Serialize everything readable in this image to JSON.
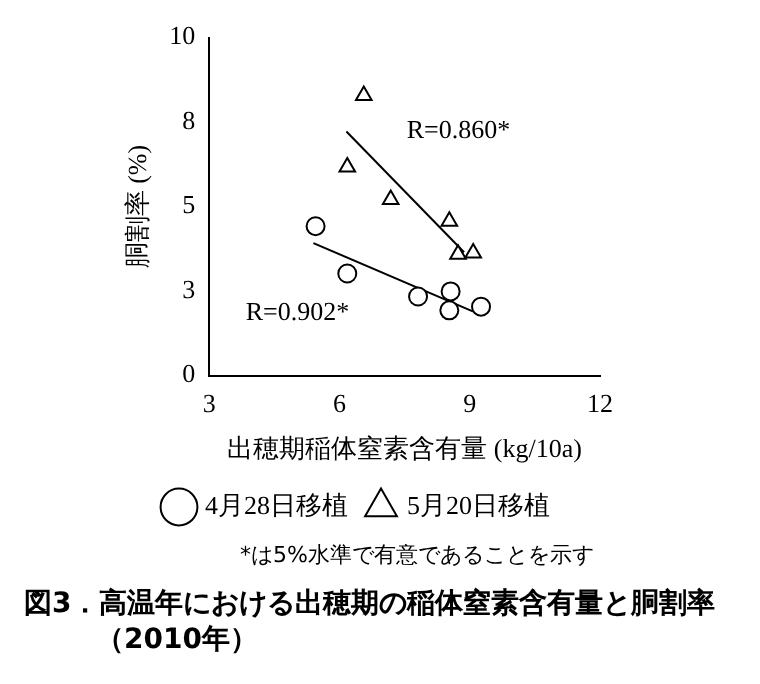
{
  "chart_data": {
    "type": "scatter",
    "title": "図3．高温年における出穂期の稲体窒素含有量と胴割率（2010年）",
    "xlabel": "出穂期稲体窒素含有量 (kg/10a)",
    "ylabel": "胴割率 (%)",
    "xlim": [
      3,
      12
    ],
    "xticks": [
      3,
      6,
      9,
      12
    ],
    "ylim": [
      0,
      10
    ],
    "yticks": [
      0,
      {
        "value": 2.5,
        "label": "3"
      },
      5,
      {
        "value": 7.5,
        "label": "8"
      },
      10
    ],
    "legend": "bottom",
    "grid": false,
    "series": [
      {
        "name": "4月28日移植",
        "marker": "circle",
        "color": "#000000",
        "x": [
          5.45,
          6.18,
          7.81,
          8.56,
          8.53,
          9.26
        ],
        "values": [
          4.42,
          3.02,
          2.34,
          2.49,
          1.93,
          2.04
        ]
      },
      {
        "name": "5月20日移植",
        "marker": "triangle",
        "color": "#000000",
        "x": [
          6.56,
          6.18,
          7.18,
          8.53,
          8.73,
          9.08
        ],
        "values": [
          8.29,
          6.17,
          5.21,
          4.57,
          3.59,
          3.63
        ]
      },
      {
        "type": "line",
        "color": "#000000",
        "x": [
          6.16,
          8.87
        ],
        "values": [
          7.22,
          3.65
        ]
      },
      {
        "type": "line",
        "color": "#000000",
        "x": [
          5.4,
          9.07
        ],
        "values": [
          3.92,
          1.9
        ]
      }
    ],
    "annotations": [
      "R=0.860*",
      "R=0.902*",
      "*は5%水準で有意であることを示す"
    ]
  }
}
